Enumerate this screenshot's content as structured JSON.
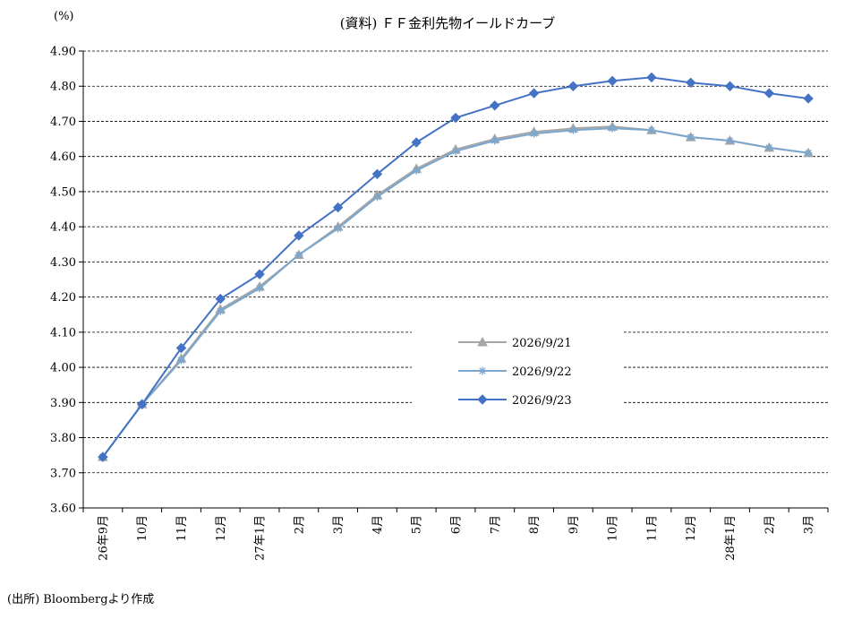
{
  "chart_data": {
    "type": "line",
    "title": "(資料) ＦＦ金利先物イールドカーブ",
    "ylabel": "(%)",
    "xlabel": "",
    "ylim": [
      3.6,
      4.9
    ],
    "ytick_labels": [
      "3.60",
      "3.70",
      "3.80",
      "3.90",
      "4.00",
      "4.10",
      "4.20",
      "4.30",
      "4.40",
      "4.50",
      "4.60",
      "4.70",
      "4.80",
      "4.90"
    ],
    "categories": [
      "26年9月",
      "10月",
      "11月",
      "12月",
      "27年1月",
      "2月",
      "3月",
      "4月",
      "5月",
      "6月",
      "7月",
      "8月",
      "9月",
      "10月",
      "11月",
      "12月",
      "28年1月",
      "2月",
      "3月"
    ],
    "grid": true,
    "legend_position": "center-right",
    "series": [
      {
        "name": "2026/9/21",
        "color": "#a5a5a5",
        "marker": "triangle",
        "values": [
          3.745,
          3.895,
          4.025,
          4.165,
          4.23,
          4.32,
          4.4,
          4.49,
          4.565,
          4.62,
          4.65,
          4.67,
          4.68,
          4.685,
          4.675,
          4.655,
          4.645,
          4.625,
          4.61
        ]
      },
      {
        "name": "2026/9/22",
        "color": "#7ba7cf",
        "marker": "asterisk",
        "values": [
          3.745,
          3.895,
          4.02,
          4.16,
          4.225,
          4.32,
          4.395,
          4.485,
          4.56,
          4.615,
          4.645,
          4.665,
          4.675,
          4.68,
          4.675,
          4.655,
          4.645,
          4.625,
          4.61
        ]
      },
      {
        "name": "2026/9/23",
        "color": "#4472c4",
        "marker": "diamond",
        "values": [
          3.745,
          3.895,
          4.055,
          4.195,
          4.265,
          4.375,
          4.455,
          4.55,
          4.64,
          4.71,
          4.745,
          4.78,
          4.8,
          4.815,
          4.825,
          4.81,
          4.8,
          4.78,
          4.765
        ]
      }
    ]
  },
  "source_note": "(出所) Bloombergより作成"
}
